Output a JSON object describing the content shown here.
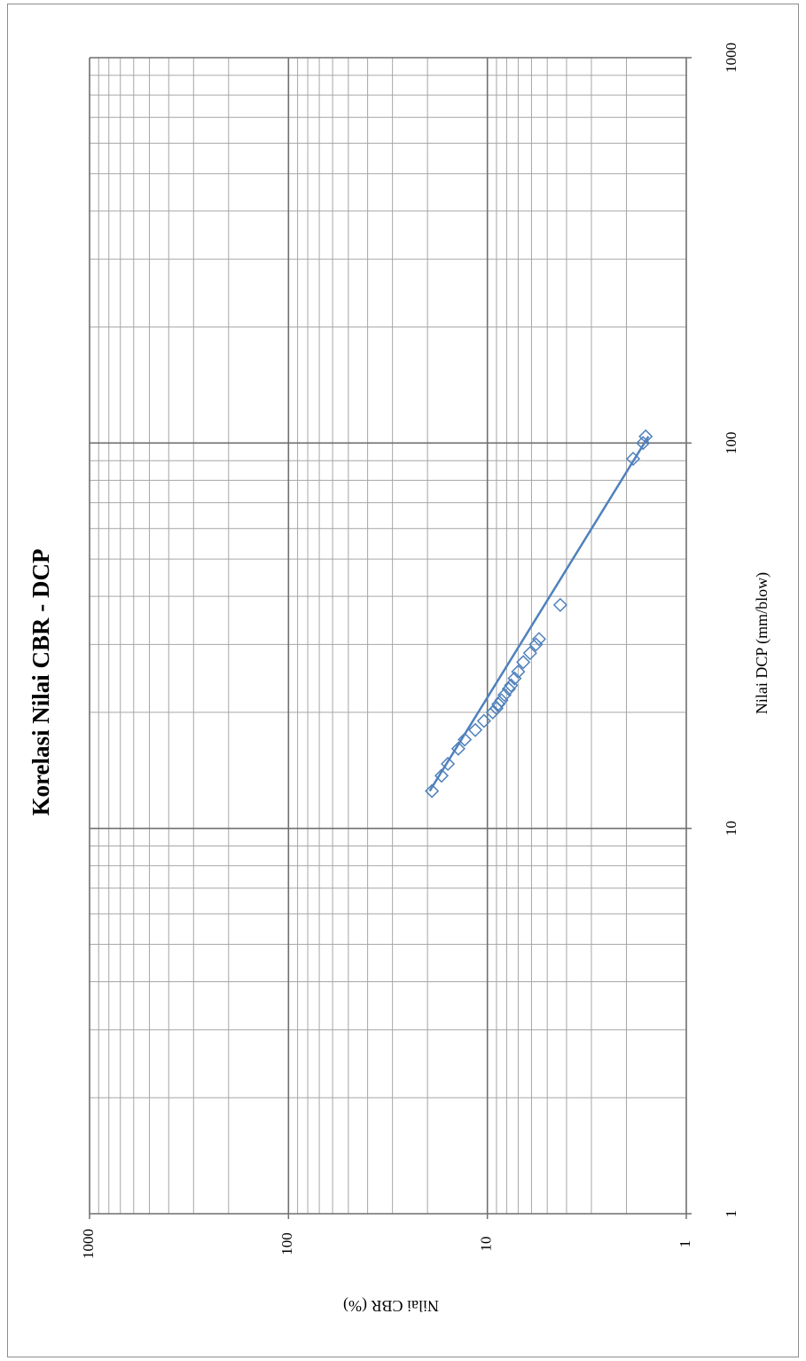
{
  "chart_data": {
    "type": "scatter",
    "title": "Korelasi Nilai CBR - DCP",
    "xlabel": "Nilai DCP (mm/blow)",
    "ylabel": "Nilai CBR (%)",
    "x_scale": "log",
    "y_scale": "log",
    "xlim": [
      1,
      1000
    ],
    "ylim": [
      1,
      1000
    ],
    "x_ticks": [
      "1",
      "10",
      "100",
      "1000"
    ],
    "y_ticks": [
      "1",
      "10",
      "100",
      "1000"
    ],
    "grid": true,
    "legend": "none",
    "series_color": "#4f81bd",
    "marker": "diamond",
    "series": [
      {
        "x": [
          12.5,
          13.7,
          14.7,
          16.1,
          17.0,
          18.0,
          19.0,
          20.0,
          20.5,
          21.0,
          21.5,
          22.2,
          23.0,
          23.5,
          24.5,
          25.5,
          27.0,
          28.5,
          30.0,
          31.0,
          38.0,
          91.0,
          100.0,
          104.0
        ],
        "y": [
          19.0,
          17.0,
          15.8,
          14.0,
          13.0,
          11.5,
          10.4,
          9.4,
          9.0,
          8.8,
          8.5,
          8.2,
          7.8,
          7.6,
          7.3,
          7.0,
          6.6,
          6.1,
          5.7,
          5.5,
          4.3,
          1.85,
          1.65,
          1.6
        ]
      }
    ],
    "fit_line": {
      "x": [
        12.5,
        104.0
      ],
      "y": [
        19.5,
        1.55
      ]
    }
  }
}
